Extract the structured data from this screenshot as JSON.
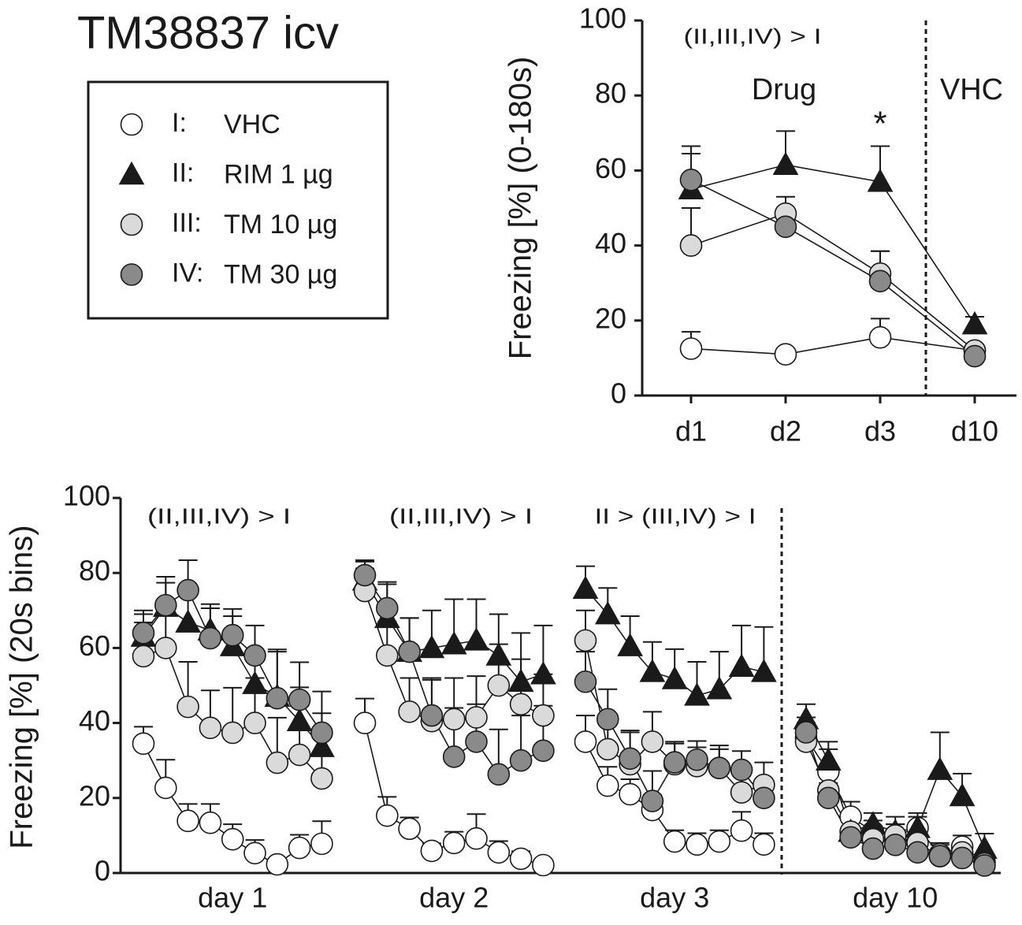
{
  "title": "TM38837 icv",
  "chart_data": [
    {
      "type": "line",
      "ylabel": "Freezing [%] (0-180s)",
      "categories": [
        "d1",
        "d2",
        "d3",
        "d10"
      ],
      "annotations": [
        "(II,III,IV) > I",
        "Drug",
        "VHC",
        "*"
      ],
      "ylim": [
        0,
        100
      ],
      "yticks": [
        0,
        20,
        40,
        60,
        80,
        100
      ],
      "series": [
        {
          "label": "I:",
          "name": "VHC",
          "color": "#ffffff",
          "marker": "circle",
          "values": [
            12.5,
            11,
            15.5,
            12
          ],
          "errors": [
            4.5,
            0,
            5,
            0
          ]
        },
        {
          "label": "II:",
          "name": "RIM 1 µg",
          "color": "#1a1a1a",
          "marker": "triangle",
          "values": [
            55,
            61.5,
            57,
            19
          ],
          "errors": [
            11.5,
            9,
            9.5,
            2
          ]
        },
        {
          "label": "III:",
          "name": "TM 10 µg",
          "color": "#dadada",
          "marker": "circle",
          "values": [
            40,
            48.5,
            32.5,
            12
          ],
          "errors": [
            10,
            4.5,
            6,
            1
          ]
        },
        {
          "label": "IV:",
          "name": "TM 30 µg",
          "color": "#8a8a8a",
          "marker": "circle",
          "values": [
            57.5,
            45,
            30.5,
            10.5
          ],
          "errors": [
            7,
            4,
            8,
            1
          ]
        }
      ]
    },
    {
      "type": "line",
      "ylabel": "Freezing [%] (20s bins)",
      "groups": [
        "day 1",
        "day 2",
        "day 3",
        "day 10"
      ],
      "annotations": [
        "(II,III,IV) > I",
        "(II,III,IV) > I",
        "II > (III,IV) > I"
      ],
      "ylim": [
        0,
        100
      ],
      "yticks": [
        0,
        20,
        40,
        60,
        80,
        100
      ],
      "series": [
        {
          "name": "VHC",
          "color": "#ffffff",
          "marker": "circle",
          "values": [
            [
              34.5,
              22.7,
              13.9,
              13.4,
              9,
              5.3,
              2.3,
              6.7,
              7.8
            ],
            [
              40,
              15.3,
              11.8,
              5.9,
              8,
              9.2,
              5.5,
              3.8,
              2.1
            ],
            [
              35,
              23.3,
              21,
              16.8,
              8.4,
              7.6,
              8.4,
              11.3,
              7.6
            ],
            [
              36,
              27,
              15,
              11,
              10,
              12,
              5,
              7,
              3
            ]
          ],
          "errors": [
            [
              4.5,
              7.5,
              4.5,
              5,
              4,
              3.5,
              0,
              3.5,
              6
            ],
            [
              6.5,
              5,
              3,
              2,
              3,
              6.5,
              3,
              2,
              1
            ],
            [
              7,
              5,
              4,
              4,
              3,
              3,
              3,
              5,
              3
            ],
            [
              4,
              6,
              4,
              3,
              3,
              3,
              3,
              3,
              2
            ]
          ]
        },
        {
          "name": "RIM 1 µg",
          "color": "#1a1a1a",
          "marker": "triangle",
          "values": [
            [
              63,
              71,
              66.8,
              64.7,
              60.5,
              50.4,
              47,
              40.5,
              33.6
            ],
            [
              78,
              68,
              59,
              60,
              61,
              62,
              58,
              51,
              53
            ],
            [
              75.8,
              69,
              60.5,
              53.6,
              51.7,
              47.3,
              49,
              55,
              53.6
            ],
            [
              41,
              30,
              11,
              13,
              11,
              12,
              27.5,
              20.5,
              6.5
            ]
          ],
          "errors": [
            [
              6,
              8,
              9,
              7,
              8,
              8,
              12,
              9,
              9
            ],
            [
              5,
              9,
              9,
              10,
              12,
              11,
              11,
              13,
              13
            ],
            [
              6,
              7,
              8,
              8,
              8,
              9,
              10,
              11,
              12
            ],
            [
              4,
              5,
              3,
              3,
              4,
              4,
              10,
              6,
              4
            ]
          ]
        },
        {
          "name": "TM 10 µg",
          "color": "#dadada",
          "marker": "circle",
          "values": [
            [
              57.8,
              60,
              44.3,
              38.7,
              37.4,
              40,
              29.4,
              31.5,
              25.2
            ],
            [
              75.2,
              58,
              43,
              40.5,
              41,
              41.5,
              50,
              45,
              42
            ],
            [
              62,
              33,
              29,
              35,
              29,
              28.5,
              28,
              21.5,
              23.5
            ],
            [
              35,
              22,
              11,
              9,
              10,
              8,
              4.5,
              5.5,
              2.5
            ]
          ],
          "errors": [
            [
              9,
              10,
              12,
              10,
              12,
              12,
              12,
              13,
              12
            ],
            [
              6,
              9,
              9,
              11,
              11,
              11,
              11,
              12,
              11
            ],
            [
              8,
              9,
              9,
              8,
              6,
              5,
              6,
              6,
              6
            ],
            [
              5,
              4,
              3,
              3,
              3,
              3,
              3,
              3,
              2
            ]
          ]
        },
        {
          "name": "TM 30 µg",
          "color": "#8a8a8a",
          "marker": "circle",
          "values": [
            [
              64,
              71.4,
              75.4,
              62.6,
              63.4,
              58,
              46.6,
              46.2,
              37.4
            ],
            [
              79.4,
              70.6,
              59,
              42,
              31,
              35,
              26.3,
              30,
              32.6
            ],
            [
              51,
              41,
              30.5,
              19.2,
              29.5,
              30.2,
              28,
              27.5,
              20
            ],
            [
              37.5,
              20,
              9.5,
              6.5,
              7.5,
              5.5,
              4.5,
              4,
              2
            ]
          ],
          "errors": [
            [
              6,
              6,
              8,
              8,
              7,
              8,
              13,
              10,
              11
            ],
            [
              4,
              7,
              9,
              10,
              13,
              10,
              12,
              12,
              12
            ],
            [
              8,
              8,
              7,
              8,
              5,
              5,
              5,
              5,
              5
            ],
            [
              4,
              4,
              3,
              3,
              3,
              3,
              2,
              2,
              2
            ]
          ]
        }
      ]
    }
  ]
}
